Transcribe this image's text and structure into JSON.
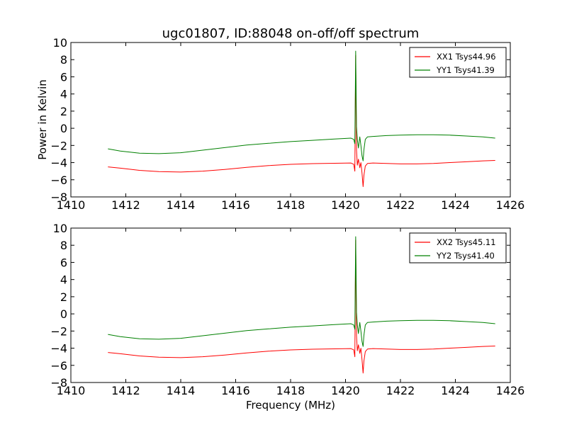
{
  "figure": {
    "title": "ugc01807, ID:88048 on-off/off spectrum"
  },
  "chart_data": [
    {
      "type": "line",
      "title": "ugc01807, ID:88048 on-off/off spectrum",
      "xlabel": "",
      "ylabel": "Power in Kelvin",
      "xlim": [
        1410,
        1426
      ],
      "ylim": [
        -8,
        10
      ],
      "xticks": [
        1410,
        1412,
        1414,
        1416,
        1418,
        1420,
        1422,
        1424,
        1426
      ],
      "yticks": [
        -8,
        -6,
        -4,
        -2,
        0,
        2,
        4,
        6,
        8,
        10
      ],
      "grid": false,
      "legend_position": "top-right",
      "series": [
        {
          "name": "XX1 Tsys44.96",
          "color": "#ff0000",
          "x": [
            1411.35,
            1411.8,
            1412.5,
            1413.2,
            1414.0,
            1414.8,
            1415.6,
            1416.4,
            1417.2,
            1418.0,
            1418.8,
            1419.6,
            1420.2,
            1420.3,
            1420.34,
            1420.37,
            1420.4,
            1420.43,
            1420.47,
            1420.52,
            1420.56,
            1420.6,
            1420.64,
            1420.67,
            1420.72,
            1420.8,
            1421.0,
            1421.5,
            1422.0,
            1422.6,
            1423.2,
            1423.8,
            1424.4,
            1425.0,
            1425.45
          ],
          "y": [
            -4.5,
            -4.65,
            -4.9,
            -5.05,
            -5.1,
            -5.0,
            -4.8,
            -4.55,
            -4.35,
            -4.2,
            -4.12,
            -4.08,
            -4.05,
            -4.2,
            -5.0,
            8.5,
            -2.5,
            -4.3,
            -3.6,
            -4.6,
            -4.0,
            -5.2,
            -6.8,
            -5.5,
            -4.4,
            -4.1,
            -4.05,
            -4.1,
            -4.15,
            -4.15,
            -4.1,
            -4.0,
            -3.9,
            -3.8,
            -3.75
          ]
        },
        {
          "name": "YY1 Tsys41.39",
          "color": "#008000",
          "x": [
            1411.35,
            1411.8,
            1412.5,
            1413.2,
            1414.0,
            1414.8,
            1415.6,
            1416.4,
            1417.2,
            1418.0,
            1418.8,
            1419.6,
            1420.2,
            1420.3,
            1420.34,
            1420.37,
            1420.4,
            1420.43,
            1420.47,
            1420.52,
            1420.56,
            1420.6,
            1420.64,
            1420.67,
            1420.72,
            1420.8,
            1421.0,
            1421.5,
            1422.0,
            1422.6,
            1423.2,
            1423.8,
            1424.4,
            1425.0,
            1425.45
          ],
          "y": [
            -2.4,
            -2.65,
            -2.9,
            -2.95,
            -2.85,
            -2.55,
            -2.25,
            -1.95,
            -1.75,
            -1.55,
            -1.4,
            -1.25,
            -1.15,
            -1.3,
            -1.8,
            9.0,
            0.2,
            -1.3,
            -2.3,
            -1.0,
            -2.0,
            -3.2,
            -3.8,
            -2.5,
            -1.3,
            -1.0,
            -0.95,
            -0.85,
            -0.8,
            -0.75,
            -0.75,
            -0.8,
            -0.9,
            -1.0,
            -1.15
          ]
        }
      ]
    },
    {
      "type": "line",
      "title": "",
      "xlabel": "Frequency (MHz)",
      "ylabel": "",
      "xlim": [
        1410,
        1426
      ],
      "ylim": [
        -8,
        10
      ],
      "xticks": [
        1410,
        1412,
        1414,
        1416,
        1418,
        1420,
        1422,
        1424,
        1426
      ],
      "yticks": [
        -8,
        -6,
        -4,
        -2,
        0,
        2,
        4,
        6,
        8,
        10
      ],
      "grid": false,
      "legend_position": "top-right",
      "series": [
        {
          "name": "XX2 Tsys45.11",
          "color": "#ff0000",
          "x": [
            1411.35,
            1411.8,
            1412.5,
            1413.2,
            1414.0,
            1414.8,
            1415.6,
            1416.4,
            1417.2,
            1418.0,
            1418.8,
            1419.6,
            1420.2,
            1420.3,
            1420.34,
            1420.37,
            1420.4,
            1420.43,
            1420.47,
            1420.52,
            1420.56,
            1420.6,
            1420.64,
            1420.67,
            1420.72,
            1420.8,
            1421.0,
            1421.5,
            1422.0,
            1422.6,
            1423.2,
            1423.8,
            1424.4,
            1425.0,
            1425.45
          ],
          "y": [
            -4.5,
            -4.65,
            -4.9,
            -5.05,
            -5.1,
            -5.0,
            -4.8,
            -4.55,
            -4.35,
            -4.2,
            -4.12,
            -4.08,
            -4.05,
            -4.2,
            -5.0,
            8.6,
            -2.5,
            -4.3,
            -3.6,
            -4.6,
            -4.0,
            -5.3,
            -6.9,
            -5.5,
            -4.4,
            -4.1,
            -4.05,
            -4.1,
            -4.15,
            -4.15,
            -4.1,
            -4.0,
            -3.9,
            -3.8,
            -3.75
          ]
        },
        {
          "name": "YY2 Tsys41.40",
          "color": "#008000",
          "x": [
            1411.35,
            1411.8,
            1412.5,
            1413.2,
            1414.0,
            1414.8,
            1415.6,
            1416.4,
            1417.2,
            1418.0,
            1418.8,
            1419.6,
            1420.2,
            1420.3,
            1420.34,
            1420.37,
            1420.4,
            1420.43,
            1420.47,
            1420.52,
            1420.56,
            1420.6,
            1420.64,
            1420.67,
            1420.72,
            1420.8,
            1421.0,
            1421.5,
            1422.0,
            1422.6,
            1423.2,
            1423.8,
            1424.4,
            1425.0,
            1425.45
          ],
          "y": [
            -2.4,
            -2.65,
            -2.9,
            -2.95,
            -2.85,
            -2.55,
            -2.25,
            -1.95,
            -1.75,
            -1.55,
            -1.4,
            -1.25,
            -1.15,
            -1.3,
            -1.8,
            9.0,
            0.2,
            -1.3,
            -2.3,
            -1.0,
            -2.0,
            -3.2,
            -3.8,
            -2.5,
            -1.3,
            -1.0,
            -0.95,
            -0.85,
            -0.8,
            -0.75,
            -0.75,
            -0.8,
            -0.9,
            -1.0,
            -1.15
          ]
        }
      ]
    }
  ]
}
